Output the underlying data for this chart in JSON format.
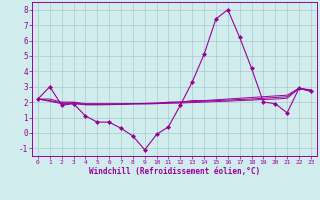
{
  "xlabel": "Windchill (Refroidissement éolien,°C)",
  "x": [
    0,
    1,
    2,
    3,
    4,
    5,
    6,
    7,
    8,
    9,
    10,
    11,
    12,
    13,
    14,
    15,
    16,
    17,
    18,
    19,
    20,
    21,
    22,
    23
  ],
  "main_y": [
    2.2,
    3.0,
    1.8,
    1.9,
    1.1,
    0.7,
    0.7,
    0.3,
    -0.2,
    -1.1,
    -0.1,
    0.4,
    1.8,
    3.3,
    5.1,
    7.4,
    8.0,
    6.2,
    4.2,
    2.0,
    1.9,
    1.3,
    2.9,
    2.7
  ],
  "line2_y": [
    2.2,
    2.2,
    2.0,
    2.0,
    1.9,
    1.9,
    1.9,
    1.9,
    1.9,
    1.9,
    1.9,
    2.0,
    2.0,
    2.1,
    2.1,
    2.15,
    2.2,
    2.25,
    2.3,
    2.35,
    2.4,
    2.45,
    2.9,
    2.8
  ],
  "line3_y": [
    2.2,
    2.1,
    1.95,
    1.95,
    1.85,
    1.85,
    1.85,
    1.87,
    1.9,
    1.92,
    1.95,
    1.97,
    2.0,
    2.03,
    2.06,
    2.1,
    2.13,
    2.17,
    2.2,
    2.25,
    2.3,
    2.35,
    2.9,
    2.75
  ],
  "line4_y": [
    2.2,
    2.05,
    1.9,
    1.9,
    1.82,
    1.82,
    1.83,
    1.85,
    1.87,
    1.88,
    1.9,
    1.92,
    1.94,
    1.97,
    2.0,
    2.03,
    2.06,
    2.1,
    2.13,
    2.17,
    2.2,
    2.25,
    2.88,
    2.7
  ],
  "line_color": "#990099",
  "bg_color": "#d0ecec",
  "grid_color": "#aacccc",
  "ylim": [
    -1.5,
    8.5
  ],
  "yticks": [
    -1,
    0,
    1,
    2,
    3,
    4,
    5,
    6,
    7,
    8
  ],
  "xlim": [
    -0.5,
    23.5
  ]
}
